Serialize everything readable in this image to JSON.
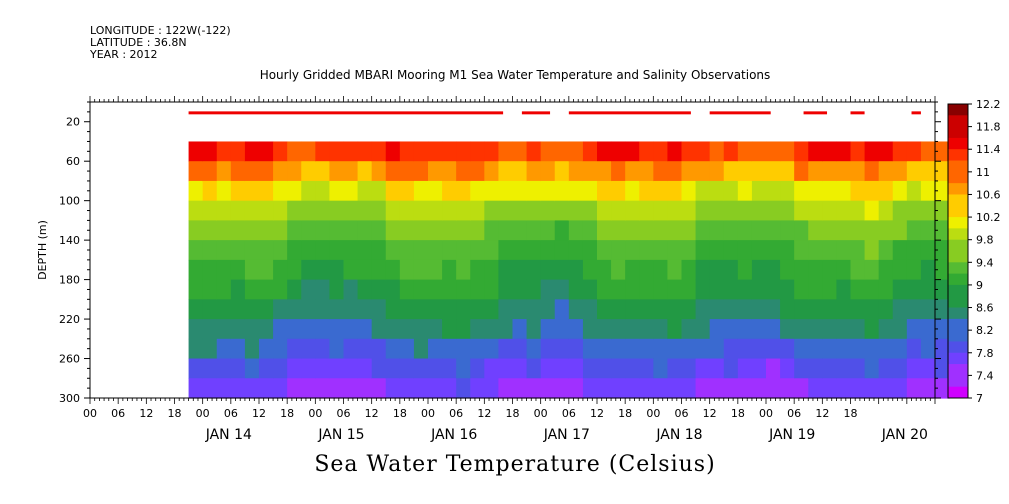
{
  "header": {
    "longitude": "LONGITUDE : 122W(-122)",
    "latitude": "LATITUDE : 36.8N",
    "year": "YEAR : 2012"
  },
  "colors": {
    "palette": [
      "#d000ff",
      "#a030ff",
      "#7040ff",
      "#5050e8",
      "#3a6ad0",
      "#2a8a70",
      "#229944",
      "#33aa33",
      "#55bb33",
      "#88cc22",
      "#bbdd11",
      "#eef000",
      "#ffcc00",
      "#ff9900",
      "#ff6600",
      "#ff3300",
      "#ee0000",
      "#cc0000",
      "#880000"
    ]
  },
  "chart_data": {
    "type": "heatmap",
    "title": "Hourly Gridded MBARI Mooring M1 Sea Water Temperature and Salinity Observations",
    "variable_label": "Sea Water Temperature (Celsius)",
    "ylabel": "DEPTH (m)",
    "ylim": [
      300,
      0
    ],
    "yticks": [
      "20",
      "60",
      "100",
      "140",
      "180",
      "220",
      "260",
      "300"
    ],
    "x_hour_ticks": [
      "00",
      "06",
      "12",
      "18",
      "00",
      "06",
      "12",
      "18",
      "00",
      "06",
      "12",
      "18",
      "00",
      "06",
      "12",
      "18",
      "00",
      "06",
      "12",
      "18",
      "00",
      "06",
      "12",
      "18",
      "00",
      "06",
      "12",
      "18"
    ],
    "x_day_labels": [
      "JAN 14",
      "JAN 15",
      "JAN 16",
      "JAN 17",
      "JAN 18",
      "JAN 19",
      "JAN 20"
    ],
    "colorbar_levels": [
      "12.2",
      "11.8",
      "11.4",
      "11",
      "10.6",
      "10.2",
      "9.8",
      "9.4",
      "9",
      "8.6",
      "8.2",
      "7.8",
      "7.4",
      "7"
    ],
    "data_start_hour": 3,
    "data_end_hour": 165,
    "profile_top_depth": 40,
    "surface_bar_depth": 10,
    "surface_bar_segments": [
      [
        3,
        70
      ],
      [
        74,
        80
      ],
      [
        84,
        110
      ],
      [
        114,
        127
      ],
      [
        134,
        139
      ],
      [
        144,
        147
      ],
      [
        157,
        159
      ],
      [
        166,
        167
      ]
    ],
    "profile_rows": [
      {
        "depth": 40,
        "temp": 11.5
      },
      {
        "depth": 60,
        "temp": 11.0
      },
      {
        "depth": 80,
        "temp": 10.4
      },
      {
        "depth": 100,
        "temp": 9.9
      },
      {
        "depth": 120,
        "temp": 9.6
      },
      {
        "depth": 140,
        "temp": 9.3
      },
      {
        "depth": 160,
        "temp": 9.1
      },
      {
        "depth": 180,
        "temp": 8.95
      },
      {
        "depth": 200,
        "temp": 8.75
      },
      {
        "depth": 220,
        "temp": 8.55
      },
      {
        "depth": 240,
        "temp": 8.3
      },
      {
        "depth": 260,
        "temp": 8.0
      },
      {
        "depth": 280,
        "temp": 7.7
      },
      {
        "depth": 300,
        "temp": 7.4
      }
    ]
  }
}
